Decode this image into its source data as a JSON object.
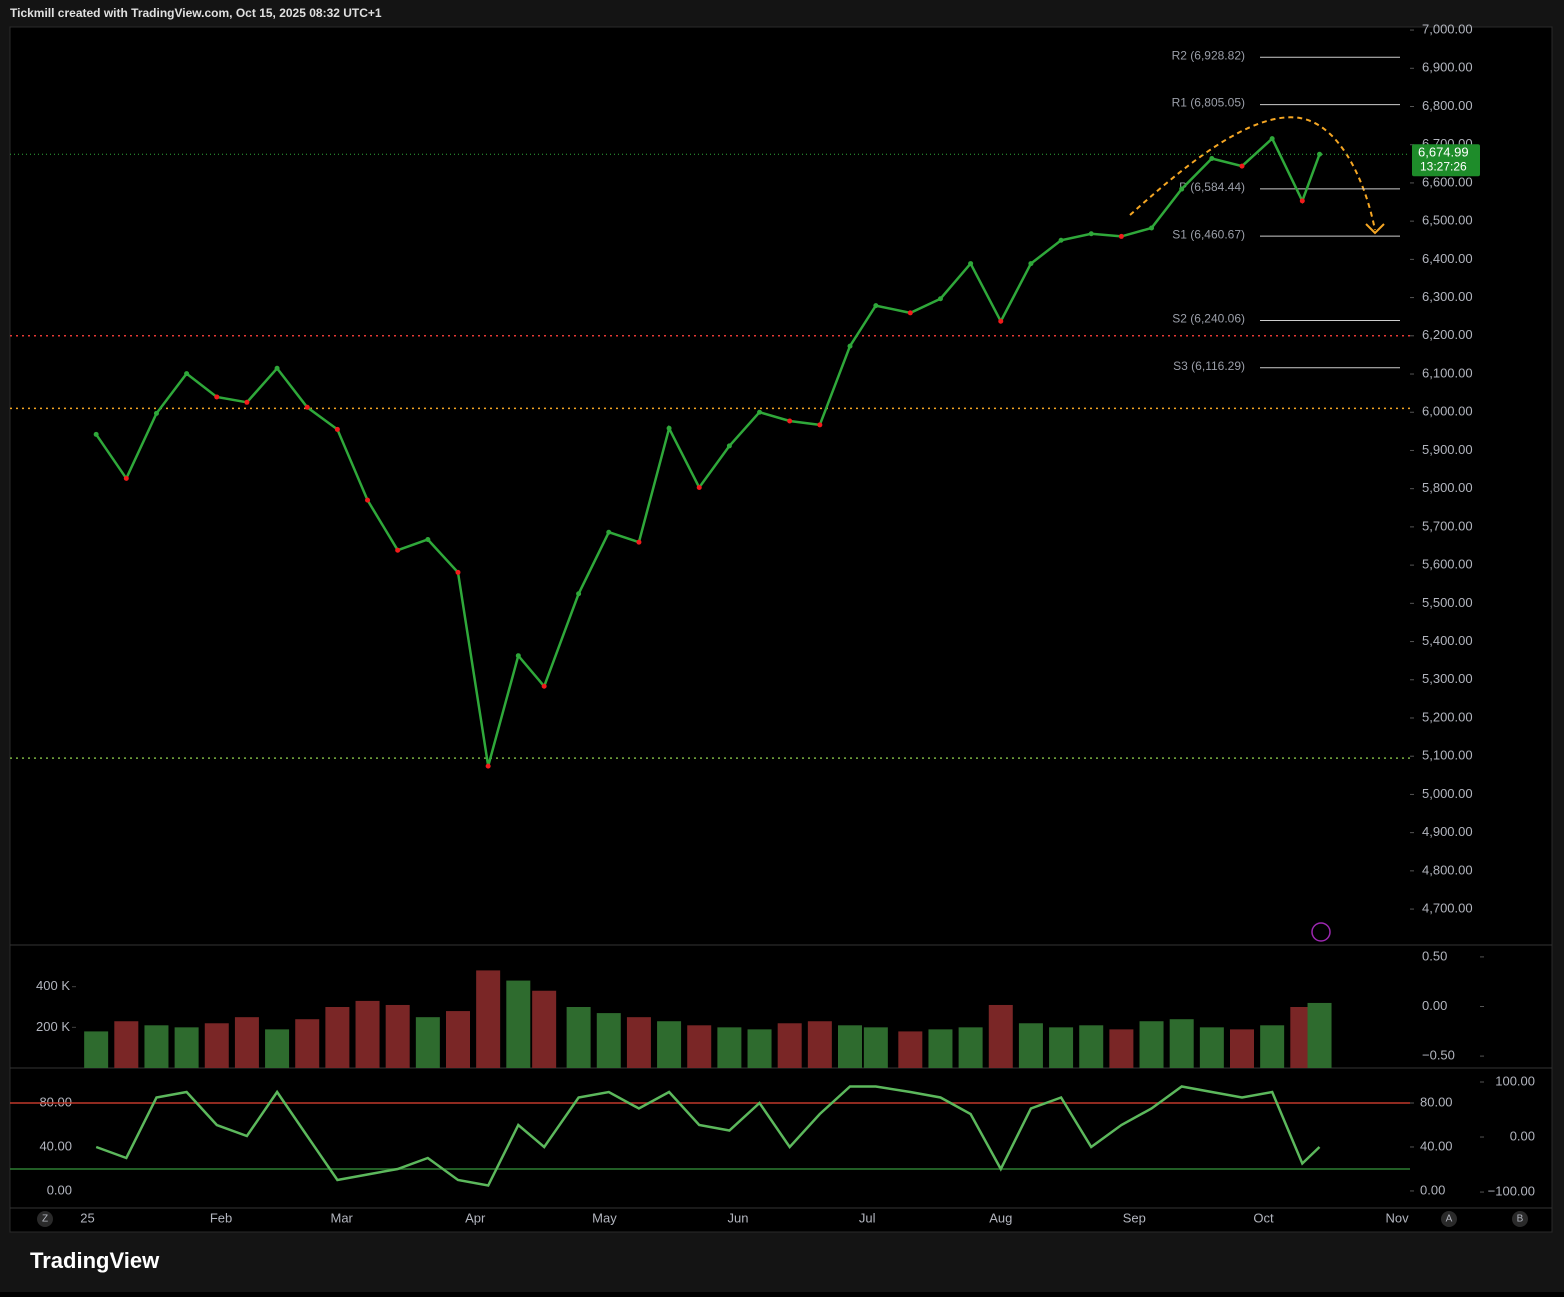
{
  "header": "Tickmill created with TradingView.com, Oct 15, 2025 08:32 UTC+1",
  "ui": {
    "brand": "TradingView",
    "buttons": [
      "Z",
      "A",
      "B"
    ]
  },
  "chart_data": [
    {
      "type": "line",
      "color": "#2fa83a",
      "x": [
        2,
        9,
        16,
        23,
        30,
        37,
        44,
        51,
        58,
        65,
        72,
        79,
        86,
        93,
        100,
        106,
        114,
        121,
        128,
        135,
        142,
        149,
        156,
        163,
        170,
        177,
        183,
        191,
        198,
        205,
        212,
        219,
        226,
        233,
        240,
        247,
        254,
        261,
        268,
        275,
        282,
        286
      ],
      "values": [
        5942,
        5827,
        5997,
        6101,
        6040,
        6026,
        6115,
        6013,
        5955,
        5770,
        5639,
        5667,
        5581,
        5074,
        5363,
        5283,
        5525,
        5686,
        5660,
        5958,
        5803,
        5912,
        6000,
        5977,
        5967,
        6173,
        6279,
        6260,
        6297,
        6389,
        6238,
        6389,
        6450,
        6467,
        6460,
        6482,
        6584,
        6664,
        6644,
        6716,
        6553,
        6675
      ],
      "xlim": [
        -18,
        307
      ],
      "xticks": [
        {
          "value": 0,
          "label": "25"
        },
        {
          "value": 31,
          "label": "Feb"
        },
        {
          "value": 59,
          "label": "Mar"
        },
        {
          "value": 90,
          "label": "Apr"
        },
        {
          "value": 120,
          "label": "May"
        },
        {
          "value": 151,
          "label": "Jun"
        },
        {
          "value": 181,
          "label": "Jul"
        },
        {
          "value": 212,
          "label": "Aug"
        },
        {
          "value": 243,
          "label": "Sep"
        },
        {
          "value": 273,
          "label": "Oct"
        },
        {
          "value": 304,
          "label": "Nov"
        }
      ],
      "ylim": [
        4606,
        7008
      ],
      "yticks": [
        {
          "value": 4700,
          "label": "4,700.00"
        },
        {
          "value": 4800,
          "label": "4,800.00"
        },
        {
          "value": 4900,
          "label": "4,900.00"
        },
        {
          "value": 5000,
          "label": "5,000.00"
        },
        {
          "value": 5100,
          "label": "5,100.00"
        },
        {
          "value": 5200,
          "label": "5,200.00"
        },
        {
          "value": 5300,
          "label": "5,300.00"
        },
        {
          "value": 5400,
          "label": "5,400.00"
        },
        {
          "value": 5500,
          "label": "5,500.00"
        },
        {
          "value": 5600,
          "label": "5,600.00"
        },
        {
          "value": 5700,
          "label": "5,700.00"
        },
        {
          "value": 5800,
          "label": "5,800.00"
        },
        {
          "value": 5900,
          "label": "5,900.00"
        },
        {
          "value": 6000,
          "label": "6,000.00"
        },
        {
          "value": 6100,
          "label": "6,100.00"
        },
        {
          "value": 6200,
          "label": "6,200.00"
        },
        {
          "value": 6300,
          "label": "6,300.00"
        },
        {
          "value": 6400,
          "label": "6,400.00"
        },
        {
          "value": 6500,
          "label": "6,500.00"
        },
        {
          "value": 6600,
          "label": "6,600.00"
        },
        {
          "value": 6700,
          "label": "6,700.00"
        },
        {
          "value": 6800,
          "label": "6,800.00"
        },
        {
          "value": 6900,
          "label": "6,900.00"
        },
        {
          "value": 7000,
          "label": "7,000.00"
        }
      ],
      "levels": [
        {
          "value": 6200,
          "color": "#e53935"
        },
        {
          "value": 6010,
          "color": "#f5a623"
        },
        {
          "value": 5095,
          "color": "#7cb342"
        }
      ],
      "pivots": [
        {
          "value": 6928.82,
          "label": "R2 (6,928.82)"
        },
        {
          "value": 6805.05,
          "label": "R1 (6,805.05)"
        },
        {
          "value": 6584.44,
          "label": "P (6,584.44)"
        },
        {
          "value": 6460.67,
          "label": "S1 (6,460.67)"
        },
        {
          "value": 6240.06,
          "label": "S2 (6,240.06)"
        },
        {
          "value": 6116.29,
          "label": "S3 (6,116.29)"
        }
      ],
      "last_price": {
        "value": 6674.99,
        "label": "6,674.99"
      },
      "countdown": "13:27:26"
    },
    {
      "type": "bar",
      "up_color": "#2e6b2e",
      "down_color": "#7a2626",
      "x": [
        2,
        9,
        16,
        23,
        30,
        37,
        44,
        51,
        58,
        65,
        72,
        79,
        86,
        93,
        100,
        106,
        114,
        121,
        128,
        135,
        142,
        149,
        156,
        163,
        170,
        177,
        183,
        191,
        198,
        205,
        212,
        219,
        226,
        233,
        240,
        247,
        254,
        261,
        268,
        275,
        282,
        286
      ],
      "values": [
        180000,
        230000,
        210000,
        200000,
        220000,
        250000,
        190000,
        240000,
        300000,
        330000,
        310000,
        250000,
        280000,
        480000,
        430000,
        380000,
        300000,
        270000,
        250000,
        230000,
        210000,
        200000,
        190000,
        220000,
        230000,
        210000,
        200000,
        180000,
        190000,
        200000,
        310000,
        220000,
        200000,
        210000,
        190000,
        230000,
        240000,
        200000,
        190000,
        210000,
        300000,
        320000
      ],
      "ylim": [
        0,
        605000
      ],
      "yticks": [
        {
          "value": 200000,
          "label": "200 K"
        },
        {
          "value": 400000,
          "label": "400 K"
        }
      ],
      "y2lim": [
        -0.62,
        0.62
      ],
      "y2ticks": [
        {
          "value": 0.5,
          "label": "0.50"
        },
        {
          "value": 0,
          "label": "0.00"
        },
        {
          "value": -0.5,
          "label": "−0.50"
        }
      ]
    },
    {
      "type": "line",
      "color": "#5cb85c",
      "x": [
        2,
        9,
        16,
        23,
        30,
        37,
        44,
        51,
        58,
        65,
        72,
        79,
        86,
        93,
        100,
        106,
        114,
        121,
        128,
        135,
        142,
        149,
        156,
        163,
        170,
        177,
        183,
        191,
        198,
        205,
        212,
        219,
        226,
        233,
        240,
        247,
        254,
        261,
        268,
        275,
        282,
        286
      ],
      "values": [
        40,
        30,
        85,
        90,
        60,
        50,
        90,
        50,
        10,
        15,
        20,
        30,
        10,
        5,
        60,
        40,
        85,
        90,
        75,
        90,
        60,
        55,
        80,
        40,
        70,
        95,
        95,
        90,
        85,
        70,
        20,
        75,
        85,
        40,
        60,
        75,
        95,
        90,
        85,
        90,
        25,
        40
      ],
      "ylim": [
        -15.5,
        110
      ],
      "yticks": [
        {
          "value": 0,
          "label": "0.00"
        },
        {
          "value": 40,
          "label": "40.00"
        },
        {
          "value": 80,
          "label": "80.00"
        }
      ],
      "y2lim": [
        -129,
        121.8
      ],
      "y2ticks": [
        {
          "value": 100,
          "label": "100.00"
        },
        {
          "value": 0,
          "label": "0.00"
        },
        {
          "value": -100,
          "label": "−100.00"
        }
      ],
      "levels": [
        {
          "value": 80,
          "color": "#c0392b"
        },
        {
          "value": 20,
          "color": "#2e7d32"
        }
      ]
    }
  ]
}
